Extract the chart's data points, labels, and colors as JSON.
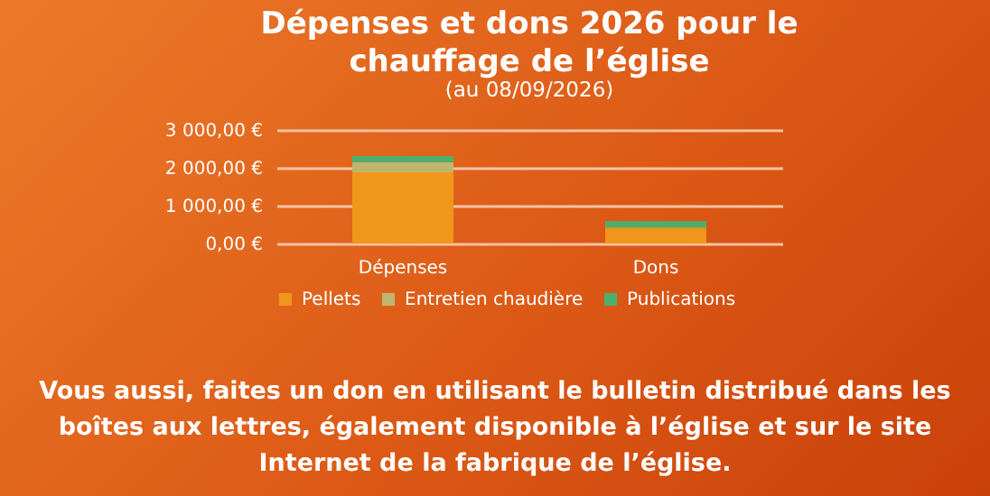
{
  "chart_data": {
    "type": "bar",
    "title": "Dépenses et dons 2026 pour le chauffage de l’église",
    "subtitle": "(au 08/09/2026)",
    "categories": [
      "Dépenses",
      "Dons"
    ],
    "stacked": true,
    "series": [
      {
        "name": "Pellets",
        "color": "#f0961a",
        "values": [
          1880,
          420
        ]
      },
      {
        "name": "Entretien chaudière",
        "color": "#bfb56e",
        "values": [
          270,
          0
        ]
      },
      {
        "name": "Publications",
        "color": "#4caf6e",
        "values": [
          160,
          170
        ]
      }
    ],
    "ylim": [
      0,
      3000
    ],
    "yticks": [
      {
        "value": 0,
        "label": "0,00 €"
      },
      {
        "value": 1000,
        "label": "1 000,00 €"
      },
      {
        "value": 2000,
        "label": "2 000,00 €"
      },
      {
        "value": 3000,
        "label": "3 000,00 €"
      }
    ],
    "grid": true,
    "legend": "bottom",
    "annotations": [
      "Vous aussi, faites un don en utilisant le bulletin distribué dans les boîtes aux lettres, également disponible à l’église et sur le site Internet de la fabrique de l’église."
    ]
  }
}
